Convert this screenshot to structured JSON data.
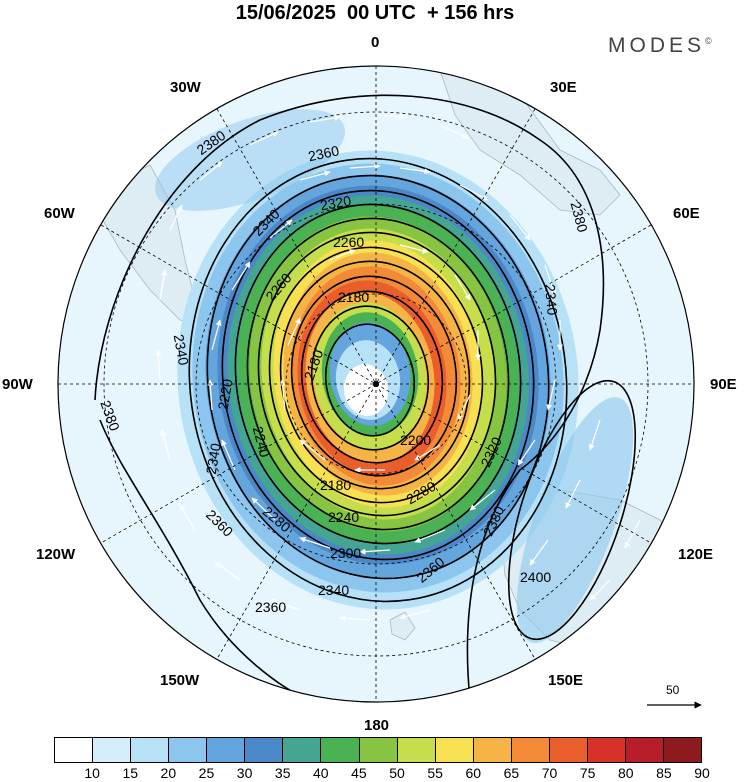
{
  "header": {
    "title": "15/06/2025  00 UTC  + 156 hrs",
    "brand": "MODES",
    "brand_mark": "©"
  },
  "map": {
    "projection": "polar stereographic, south pole",
    "meridian_labels": {
      "m0": "0",
      "m30e": "30E",
      "m60e": "60E",
      "m90e": "90E",
      "m120e": "120E",
      "m150e": "150E",
      "m180": "180",
      "m150w": "150W",
      "m120w": "120W",
      "m90w": "90W",
      "m60w": "60W",
      "m30w": "30W"
    },
    "contour_labels": {
      "c2380a": "2380",
      "c2360a": "2360",
      "c2340a": "2340",
      "c2320a": "2320",
      "c2260a": "2260",
      "c2260b": "2260",
      "c2180a": "2180",
      "c2180b": "2180",
      "c2200a": "2200",
      "c2240a": "2240",
      "c2280a": "2280",
      "c2300a": "2300",
      "c2340b": "2340",
      "c2360b": "2360",
      "c2360c": "2360",
      "c2380b": "2380",
      "c2380c": "2380",
      "c2400a": "2400",
      "c2340c": "2340",
      "c2340d": "2340",
      "c2320b": "2320",
      "c2280b": "2280",
      "c2220a": "2220",
      "c2240b": "2240",
      "c2380d": "2380",
      "c2340e": "2340"
    },
    "vector_reference": "50",
    "colors": {
      "ocean_bg": "#ffffff",
      "land": "#ececec"
    }
  },
  "colorbar": {
    "labels": [
      "10",
      "15",
      "20",
      "25",
      "30",
      "35",
      "40",
      "45",
      "50",
      "55",
      "60",
      "65",
      "70",
      "75",
      "80",
      "85",
      "90"
    ],
    "colors": [
      "#ffffff",
      "#d4eefb",
      "#b6e1f7",
      "#8cc6ee",
      "#65a5de",
      "#4b88c8",
      "#45a593",
      "#4bb253",
      "#86c441",
      "#c6de4c",
      "#f7e152",
      "#f6b446",
      "#f28a38",
      "#ea5e2b",
      "#d8312a",
      "#b81e2a",
      "#8c1a1f"
    ]
  }
}
